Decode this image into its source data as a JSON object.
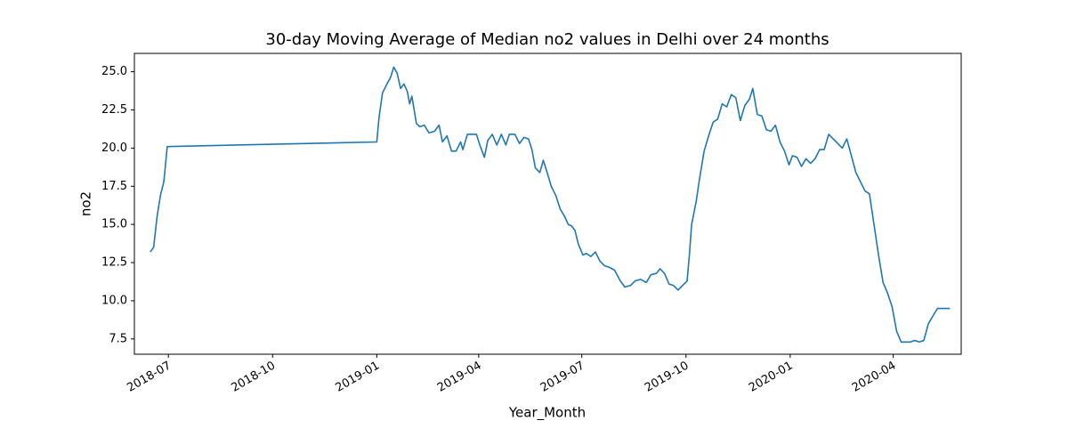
{
  "chart_data": {
    "type": "line",
    "title": "30-day Moving Average of Median no2 values in Delhi over 24 months",
    "x_label": "Year_Month",
    "y_label": "no2",
    "x": [
      "2018-06-15",
      "2018-06-18",
      "2018-06-21",
      "2018-06-24",
      "2018-06-27",
      "2018-06-30",
      "2019-01-01",
      "2019-01-03",
      "2019-01-06",
      "2019-01-10",
      "2019-01-13",
      "2019-01-16",
      "2019-01-19",
      "2019-01-22",
      "2019-01-25",
      "2019-01-28",
      "2019-01-30",
      "2019-02-01",
      "2019-02-05",
      "2019-02-08",
      "2019-02-12",
      "2019-02-16",
      "2019-02-21",
      "2019-02-25",
      "2019-02-28",
      "2019-03-04",
      "2019-03-08",
      "2019-03-12",
      "2019-03-16",
      "2019-03-18",
      "2019-03-22",
      "2019-03-26",
      "2019-03-30",
      "2019-04-02",
      "2019-04-06",
      "2019-04-09",
      "2019-04-13",
      "2019-04-17",
      "2019-04-21",
      "2019-04-25",
      "2019-04-28",
      "2019-05-03",
      "2019-05-07",
      "2019-05-11",
      "2019-05-15",
      "2019-05-18",
      "2019-05-21",
      "2019-05-25",
      "2019-05-28",
      "2019-05-31",
      "2019-06-04",
      "2019-06-08",
      "2019-06-12",
      "2019-06-16",
      "2019-06-19",
      "2019-06-22",
      "2019-06-25",
      "2019-06-28",
      "2019-07-02",
      "2019-07-05",
      "2019-07-09",
      "2019-07-13",
      "2019-07-17",
      "2019-07-21",
      "2019-07-25",
      "2019-07-30",
      "2019-08-04",
      "2019-08-08",
      "2019-08-13",
      "2019-08-17",
      "2019-08-22",
      "2019-08-27",
      "2019-08-31",
      "2019-09-05",
      "2019-09-08",
      "2019-09-12",
      "2019-09-16",
      "2019-09-20",
      "2019-09-24",
      "2019-09-28",
      "2019-10-02",
      "2019-10-04",
      "2019-10-06",
      "2019-10-10",
      "2019-10-13",
      "2019-10-17",
      "2019-10-21",
      "2019-10-25",
      "2019-10-29",
      "2019-11-02",
      "2019-11-06",
      "2019-11-10",
      "2019-11-14",
      "2019-11-18",
      "2019-11-22",
      "2019-11-26",
      "2019-11-29",
      "2019-12-03",
      "2019-12-07",
      "2019-12-11",
      "2019-12-15",
      "2019-12-19",
      "2019-12-23",
      "2019-12-27",
      "2019-12-31",
      "2020-01-03",
      "2020-01-07",
      "2020-01-11",
      "2020-01-15",
      "2020-01-19",
      "2020-01-23",
      "2020-01-27",
      "2020-01-31",
      "2020-02-04",
      "2020-02-08",
      "2020-02-12",
      "2020-02-16",
      "2020-02-20",
      "2020-02-24",
      "2020-02-28",
      "2020-03-03",
      "2020-03-07",
      "2020-03-11",
      "2020-03-15",
      "2020-03-19",
      "2020-03-23",
      "2020-03-27",
      "2020-03-31",
      "2020-04-04",
      "2020-04-08",
      "2020-04-12",
      "2020-04-16",
      "2020-04-20",
      "2020-04-24",
      "2020-04-28",
      "2020-05-02",
      "2020-05-06",
      "2020-05-10",
      "2020-05-14",
      "2020-05-21"
    ],
    "series": [
      {
        "name": "no2",
        "color": "#1f77b4",
        "values": [
          13.2,
          13.5,
          15.5,
          16.9,
          17.8,
          20.1,
          20.4,
          22.0,
          23.6,
          24.2,
          24.6,
          25.3,
          24.9,
          23.9,
          24.2,
          23.7,
          22.9,
          23.4,
          21.6,
          21.4,
          21.5,
          21.0,
          21.1,
          21.5,
          20.4,
          20.8,
          19.8,
          19.8,
          20.4,
          19.9,
          20.9,
          20.9,
          20.9,
          20.2,
          19.4,
          20.5,
          20.9,
          20.2,
          20.9,
          20.2,
          20.9,
          20.9,
          20.3,
          20.7,
          20.6,
          19.9,
          18.7,
          18.4,
          19.2,
          18.5,
          17.5,
          16.9,
          16.0,
          15.5,
          15.0,
          14.9,
          14.6,
          13.7,
          13.0,
          13.1,
          12.9,
          13.2,
          12.6,
          12.3,
          12.2,
          12.0,
          11.3,
          10.9,
          11.0,
          11.3,
          11.4,
          11.2,
          11.7,
          11.8,
          12.1,
          11.8,
          11.1,
          11.0,
          10.7,
          11.0,
          11.3,
          13.0,
          15.0,
          16.5,
          18.0,
          19.8,
          20.8,
          21.7,
          21.9,
          22.9,
          22.7,
          23.5,
          23.3,
          21.8,
          22.8,
          23.2,
          23.9,
          22.2,
          22.1,
          21.2,
          21.1,
          21.5,
          20.4,
          19.8,
          18.9,
          19.5,
          19.4,
          18.8,
          19.3,
          19.0,
          19.3,
          19.9,
          19.9,
          20.9,
          20.6,
          20.3,
          20.0,
          20.6,
          19.5,
          18.4,
          17.8,
          17.2,
          17.0,
          15.0,
          13.0,
          11.2,
          10.5,
          9.6,
          8.0,
          7.3,
          7.3,
          7.3,
          7.4,
          7.3,
          7.4,
          8.5,
          9.0,
          9.5,
          9.5,
          9.5
        ]
      }
    ],
    "xlim": [
      "2018-06-01",
      "2020-05-31"
    ],
    "xticks": [
      {
        "value": "2018-07-01",
        "label": "2018-07"
      },
      {
        "value": "2018-10-01",
        "label": "2018-10"
      },
      {
        "value": "2019-01-01",
        "label": "2019-01"
      },
      {
        "value": "2019-04-01",
        "label": "2019-04"
      },
      {
        "value": "2019-07-01",
        "label": "2019-07"
      },
      {
        "value": "2019-10-01",
        "label": "2019-10"
      },
      {
        "value": "2020-01-01",
        "label": "2020-01"
      },
      {
        "value": "2020-04-01",
        "label": "2020-04"
      }
    ],
    "ylim": [
      6.5,
      26.2
    ],
    "yticks": [
      7.5,
      {
        "value": 10,
        "label": "10.0"
      },
      12.5,
      {
        "value": 15,
        "label": "15.0"
      },
      17.5,
      {
        "value": 20,
        "label": "20.0"
      },
      22.5,
      {
        "value": 25,
        "label": "25.0"
      }
    ],
    "grid": false
  }
}
